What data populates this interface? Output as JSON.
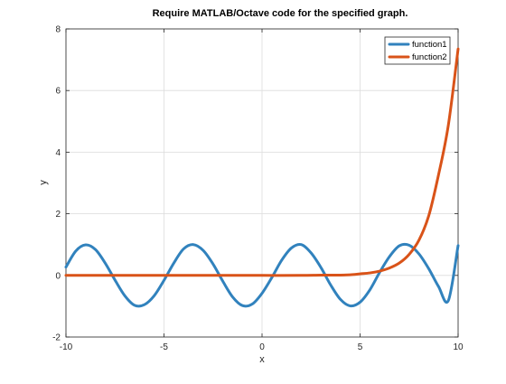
{
  "chart_data": {
    "type": "line",
    "title": "Require MATLAB/Octave code for the specified graph.",
    "xlabel": "x",
    "ylabel": "y",
    "xlim": [
      -10,
      10
    ],
    "ylim": [
      -2,
      8
    ],
    "xticks": [
      -10,
      -5,
      0,
      5,
      10
    ],
    "yticks": [
      -2,
      0,
      2,
      4,
      6,
      8
    ],
    "xtick_labels": [
      "-10",
      "-5",
      "0",
      "5",
      "10"
    ],
    "ytick_labels": [
      "-2",
      "0",
      "2",
      "4",
      "6",
      "8"
    ],
    "grid": true,
    "legend_position": "top-right",
    "series": [
      {
        "name": "function1",
        "color": "#3182bd",
        "x": [
          -10,
          -9.5,
          -9,
          -8.5,
          -8,
          -7.5,
          -7,
          -6.5,
          -6,
          -5.5,
          -5,
          -4.5,
          -4,
          -3.5,
          -3,
          -2.5,
          -2,
          -1.5,
          -1,
          -0.5,
          0,
          0.5,
          1,
          1.5,
          2,
          2.5,
          3,
          3.5,
          4,
          4.5,
          5,
          5.5,
          6,
          6.5,
          7,
          7.5,
          8,
          8.5,
          9,
          9.5,
          10
        ],
        "y": [
          0.27,
          0.79,
          0.99,
          0.84,
          0.4,
          -0.15,
          -0.66,
          -0.97,
          -0.95,
          -0.66,
          -0.16,
          0.4,
          0.86,
          1.0,
          0.81,
          0.37,
          -0.19,
          -0.7,
          -0.98,
          -0.93,
          -0.58,
          -0.07,
          0.49,
          0.89,
          1.0,
          0.73,
          0.26,
          -0.31,
          -0.78,
          -0.99,
          -0.87,
          -0.47,
          0.1,
          0.61,
          0.96,
          0.98,
          0.7,
          0.22,
          -0.36,
          -0.82,
          0.97
        ]
      },
      {
        "name": "function2",
        "color": "#d95319",
        "x": [
          -10,
          -8,
          -6,
          -4,
          -2,
          0,
          2,
          3,
          4,
          4.5,
          5,
          5.5,
          6,
          6.5,
          7,
          7.5,
          8,
          8.5,
          9,
          9.5,
          10
        ],
        "y": [
          0.0,
          0.0,
          0.0,
          0.0,
          0.0,
          0.0,
          0.0,
          0.01,
          0.01,
          0.02,
          0.05,
          0.08,
          0.14,
          0.24,
          0.4,
          0.68,
          1.14,
          1.93,
          3.26,
          4.87,
          7.35
        ]
      }
    ]
  }
}
